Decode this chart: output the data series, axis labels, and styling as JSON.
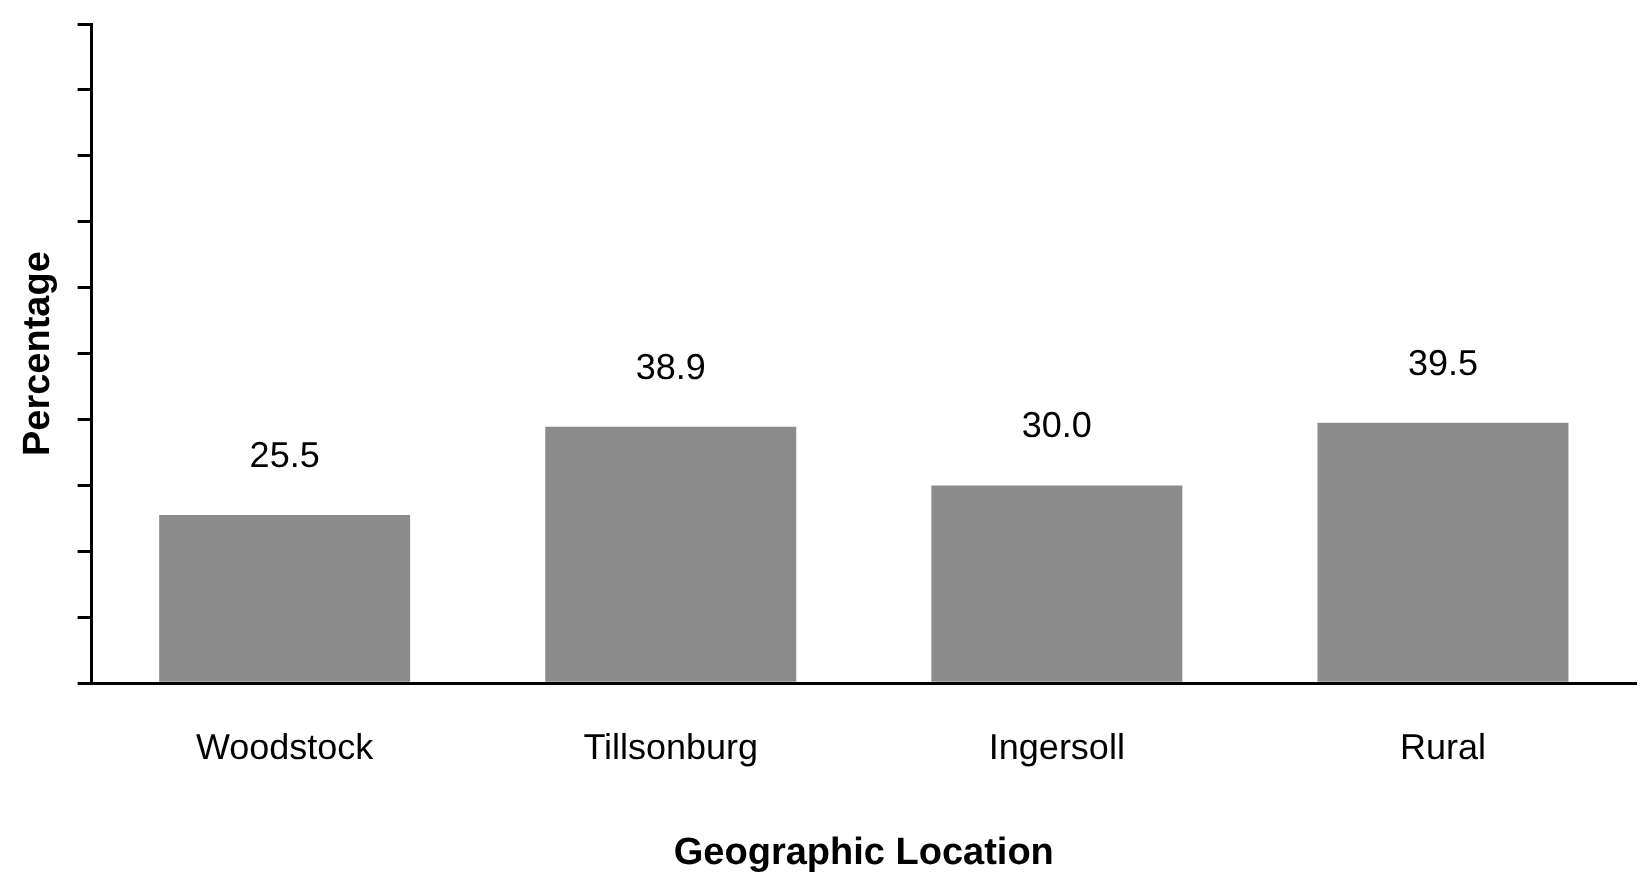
{
  "chart_data": {
    "type": "bar",
    "xlabel": "Geographic Location",
    "ylabel": "Percentage",
    "categories": [
      "Woodstock",
      "Tillsonburg",
      "Ingersoll",
      "Rural"
    ],
    "values": [
      25.5,
      38.9,
      30.0,
      39.5
    ],
    "value_labels": [
      "25.5",
      "38.9",
      "30.0",
      "39.5"
    ],
    "color": "#8c8c8c",
    "ylim": [
      0,
      100
    ],
    "tick_labels": "x",
    "grid": false,
    "legend": false
  }
}
